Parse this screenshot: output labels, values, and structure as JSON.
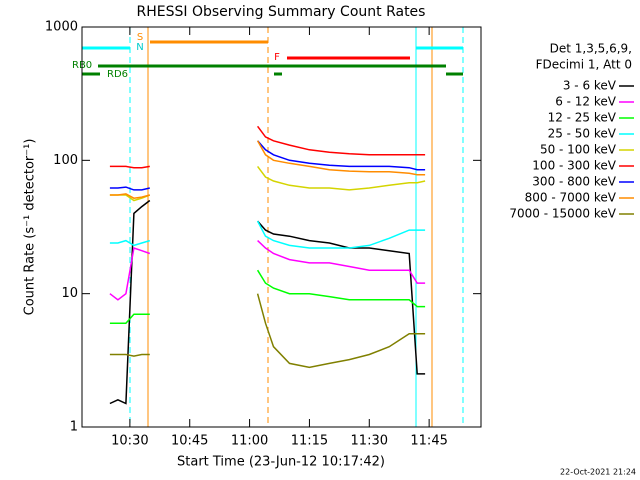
{
  "chart_data": {
    "type": "line",
    "title": "RHESSI Observing Summary Count Rates",
    "xlabel": "Start Time (23-Jun-12 10:17:42)",
    "ylabel": "Count Rate (s⁻¹ detector⁻¹)",
    "log_y": true,
    "xlim": [
      "10:18",
      "11:58"
    ],
    "ylim": [
      1,
      1000
    ],
    "xticks": [
      "10:30",
      "10:45",
      "11:00",
      "11:15",
      "11:30",
      "11:45"
    ],
    "yticks": [
      1,
      10,
      100,
      1000
    ],
    "legend_header": [
      "Det 1,3,5,6,9,",
      "FDecimi 1, Att 0"
    ],
    "annotations": [
      "S",
      "N",
      "F",
      "RB0",
      "RD6"
    ],
    "footer": "22-Oct-2021 21:24",
    "x": [
      "10:25",
      "10:27",
      "10:29",
      "10:31",
      "10:33",
      "10:35",
      "10:37",
      "11:02",
      "11:04",
      "11:06",
      "11:10",
      "11:15",
      "11:20",
      "11:25",
      "11:30",
      "11:35",
      "11:40",
      "11:42",
      "11:44"
    ],
    "series": [
      {
        "name": "3 - 6 keV",
        "color": "#000000",
        "values": [
          1.5,
          1.6,
          1.5,
          40,
          45,
          50,
          null,
          35,
          30,
          28,
          27,
          25,
          24,
          22,
          22,
          21,
          20,
          2.5,
          2.5
        ]
      },
      {
        "name": "6 - 12 keV",
        "color": "#ff00ff",
        "values": [
          10,
          9,
          10,
          22,
          21,
          20,
          null,
          25,
          22,
          20,
          18,
          17,
          17,
          16,
          15,
          15,
          15,
          12,
          12
        ]
      },
      {
        "name": "12 - 25 keV",
        "color": "#00ff00",
        "values": [
          6,
          6,
          6,
          7,
          7,
          7,
          null,
          15,
          12,
          11,
          10,
          10,
          9.5,
          9,
          9,
          9,
          9,
          8,
          8
        ]
      },
      {
        "name": "25 - 50 keV",
        "color": "#00ffff",
        "values": [
          24,
          24,
          25,
          23,
          24,
          25,
          null,
          35,
          27,
          25,
          23,
          22,
          22,
          22,
          23,
          26,
          30,
          30,
          30
        ]
      },
      {
        "name": "50 - 100 keV",
        "color": "#d4d400",
        "values": [
          55,
          55,
          55,
          50,
          52,
          55,
          null,
          90,
          75,
          70,
          65,
          62,
          62,
          60,
          62,
          65,
          68,
          68,
          70
        ]
      },
      {
        "name": "100 - 300 keV",
        "color": "#ff0000",
        "values": [
          90,
          90,
          90,
          88,
          88,
          90,
          null,
          180,
          150,
          140,
          130,
          120,
          115,
          112,
          110,
          110,
          110,
          110,
          110
        ]
      },
      {
        "name": "300 - 800 keV",
        "color": "#0000ff",
        "values": [
          62,
          62,
          63,
          60,
          60,
          62,
          null,
          140,
          120,
          110,
          100,
          95,
          92,
          90,
          90,
          90,
          88,
          85,
          85
        ]
      },
      {
        "name": "800 - 7000 keV",
        "color": "#ff8c00",
        "values": [
          55,
          55,
          56,
          52,
          53,
          55,
          null,
          140,
          110,
          100,
          95,
          90,
          85,
          83,
          82,
          82,
          80,
          78,
          78
        ]
      },
      {
        "name": "7000 - 15000 keV",
        "color": "#808000",
        "values": [
          3.5,
          3.5,
          3.5,
          3.4,
          3.5,
          3.5,
          null,
          10,
          6,
          4,
          3,
          2.8,
          3,
          3.2,
          3.5,
          4,
          5,
          5,
          5
        ]
      }
    ]
  }
}
